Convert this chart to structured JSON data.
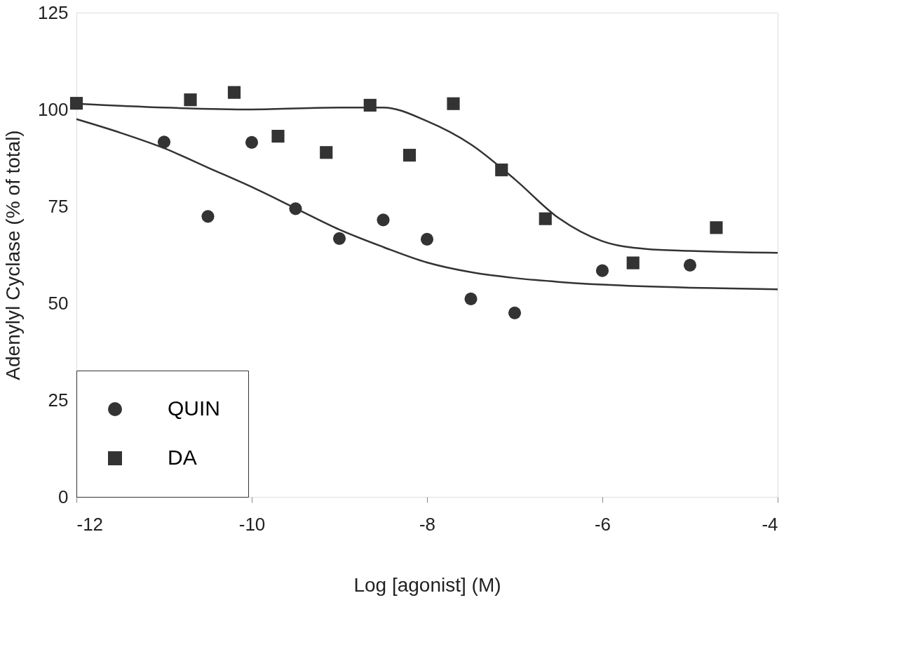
{
  "chart_data": {
    "type": "scatter",
    "xlabel": "Log [agonist] (M)",
    "ylabel": "Adenylyl Cyclase (% of total)",
    "xlim": [
      -12,
      -4
    ],
    "xticks": [
      -12,
      -10,
      -8,
      -6,
      -4
    ],
    "ylim": [
      0,
      125
    ],
    "yticks": [
      0,
      25,
      50,
      75,
      100,
      125
    ],
    "grid": false,
    "legend": "bottom left",
    "series": [
      {
        "name": "QUIN",
        "color": "#333333",
        "marker": "circle",
        "x": [
          -11,
          -10.5,
          -10,
          -9.5,
          -9,
          -8.5,
          -8,
          -7.5,
          -7,
          -6,
          -5
        ],
        "values": [
          91.6,
          72.4,
          91.5,
          74.4,
          66.7,
          71.5,
          66.5,
          51.1,
          47.5,
          58.4,
          59.8
        ]
      },
      {
        "name": "DA",
        "color": "#333333",
        "marker": "square",
        "x": [
          -12,
          -10.7,
          -10.2,
          -9.7,
          -9.15,
          -8.65,
          -8.2,
          -7.7,
          -7.15,
          -6.65,
          -5.65,
          -4.7
        ],
        "values": [
          101.6,
          102.5,
          104.4,
          93.1,
          88.9,
          101.1,
          88.2,
          101.5,
          84.4,
          71.8,
          60.4,
          69.5
        ]
      },
      {
        "type": "line",
        "color": "#333333",
        "x": [
          -12,
          -11.5,
          -11,
          -10.5,
          -10,
          -9.5,
          -9,
          -8.5,
          -8,
          -7.5,
          -7,
          -6.5,
          -6,
          -5,
          -4
        ],
        "values": [
          97.5,
          94,
          90,
          85,
          80,
          74.5,
          69,
          64.5,
          60.5,
          58,
          56.5,
          55.5,
          54.8,
          54,
          53.6
        ]
      },
      {
        "type": "line",
        "color": "#333333",
        "x": [
          -12,
          -11,
          -10,
          -9,
          -8.5,
          -8,
          -7.5,
          -7,
          -6.5,
          -6,
          -5.5,
          -5,
          -4
        ],
        "values": [
          101.5,
          100.5,
          100,
          100.5,
          100.5,
          97,
          91,
          82,
          72,
          66,
          64,
          63.5,
          63
        ]
      }
    ]
  }
}
